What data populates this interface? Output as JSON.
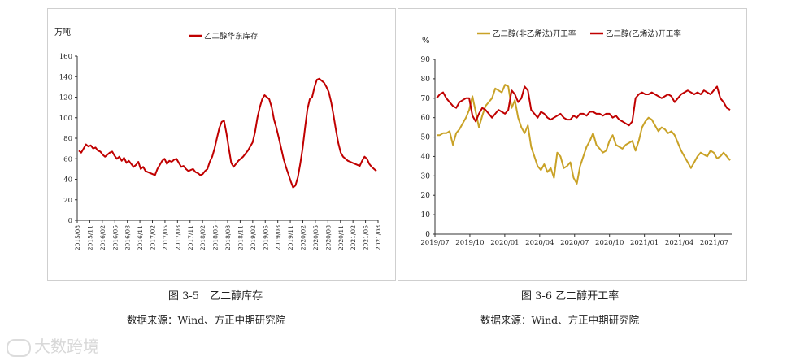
{
  "left_chart": {
    "caption": "图 3-5　乙二醇库存",
    "source": "数据来源：Wind、方正中期研究院",
    "chart_data": {
      "type": "line",
      "title": "乙二醇库存",
      "ylabel": "万吨",
      "ylim": [
        0,
        160
      ],
      "yticks": [
        "0",
        "20",
        "40",
        "60",
        "80",
        "100",
        "120",
        "140",
        "160"
      ],
      "xticks": [
        "2015/08",
        "2015/11",
        "2016/02",
        "2016/05",
        "2016/08",
        "2016/11",
        "2017/02",
        "2017/05",
        "2017/08",
        "2017/11",
        "2018/02",
        "2018/05",
        "2018/08",
        "2018/11",
        "2019/02",
        "2019/05",
        "2019/08",
        "2019/11",
        "2020/02",
        "2020/05",
        "2020/08",
        "2020/11",
        "2021/02",
        "2021/05",
        "2021/08"
      ],
      "series": [
        {
          "name": "乙二醇华东库存",
          "color": "#c00000",
          "values": [
            68,
            66,
            70,
            74,
            72,
            73,
            70,
            71,
            68,
            67,
            64,
            62,
            64,
            66,
            67,
            63,
            60,
            62,
            58,
            61,
            56,
            58,
            55,
            52,
            54,
            57,
            50,
            52,
            48,
            47,
            46,
            45,
            44,
            50,
            54,
            58,
            60,
            55,
            58,
            57,
            59,
            60,
            56,
            52,
            53,
            50,
            48,
            49,
            50,
            47,
            46,
            44,
            45,
            48,
            50,
            57,
            62,
            70,
            80,
            90,
            96,
            97,
            85,
            70,
            56,
            52,
            55,
            58,
            60,
            62,
            65,
            68,
            72,
            76,
            86,
            100,
            110,
            118,
            122,
            120,
            118,
            110,
            98,
            90,
            80,
            70,
            60,
            52,
            45,
            38,
            32,
            34,
            42,
            55,
            70,
            90,
            108,
            118,
            120,
            130,
            137,
            138,
            136,
            134,
            130,
            125,
            115,
            102,
            88,
            75,
            66,
            62,
            60,
            58,
            57,
            56,
            55,
            54,
            53,
            58,
            62,
            60,
            55,
            52,
            50,
            48
          ]
        }
      ]
    }
  },
  "right_chart": {
    "caption": "图 3-6 乙二醇开工率",
    "source": "数据来源：Wind、方正中期研究院",
    "chart_data": {
      "type": "line",
      "title": "乙二醇开工率",
      "ylabel": "%",
      "ylim": [
        0,
        90
      ],
      "yticks": [
        "0",
        "10",
        "20",
        "30",
        "40",
        "50",
        "60",
        "70",
        "80",
        "90"
      ],
      "xticks": [
        "2019/07",
        "2019/10",
        "2020/01",
        "2020/04",
        "2020/07",
        "2020/10",
        "2021/01",
        "2021/04",
        "2021/07"
      ],
      "series": [
        {
          "name": "乙二醇(非乙烯法)开工率",
          "color": "#c9a227",
          "values": [
            51,
            51,
            52,
            52,
            53,
            46,
            52,
            54,
            57,
            60,
            64,
            71,
            63,
            55,
            61,
            66,
            68,
            70,
            75,
            74,
            73,
            77,
            76,
            65,
            69,
            60,
            55,
            52,
            56,
            45,
            40,
            35,
            33,
            36,
            32,
            34,
            29,
            42,
            40,
            34,
            35,
            37,
            29,
            26,
            35,
            40,
            45,
            48,
            52,
            46,
            44,
            42,
            43,
            48,
            51,
            46,
            45,
            44,
            46,
            47,
            48,
            43,
            48,
            55,
            58,
            60,
            59,
            56,
            53,
            55,
            54,
            52,
            53,
            51,
            47,
            43,
            40,
            37,
            34,
            37,
            40,
            42,
            41,
            40,
            43,
            42,
            39,
            40,
            42,
            40,
            38
          ]
        },
        {
          "name": "乙二醇(乙烯法)开工率",
          "color": "#c00000",
          "values": [
            70,
            72,
            73,
            70,
            68,
            66,
            65,
            68,
            69,
            70,
            70,
            61,
            58,
            62,
            65,
            64,
            62,
            60,
            62,
            64,
            63,
            62,
            64,
            74,
            72,
            68,
            70,
            76,
            74,
            64,
            62,
            60,
            63,
            62,
            60,
            59,
            60,
            61,
            62,
            60,
            59,
            59,
            61,
            60,
            62,
            62,
            61,
            63,
            63,
            62,
            62,
            61,
            62,
            62,
            60,
            61,
            59,
            58,
            57,
            56,
            58,
            70,
            72,
            73,
            72,
            72,
            73,
            72,
            71,
            70,
            71,
            72,
            71,
            68,
            70,
            72,
            73,
            74,
            73,
            72,
            73,
            72,
            74,
            73,
            72,
            74,
            76,
            70,
            68,
            65,
            64
          ]
        }
      ]
    }
  },
  "watermark": {
    "text": "大数跨境"
  }
}
